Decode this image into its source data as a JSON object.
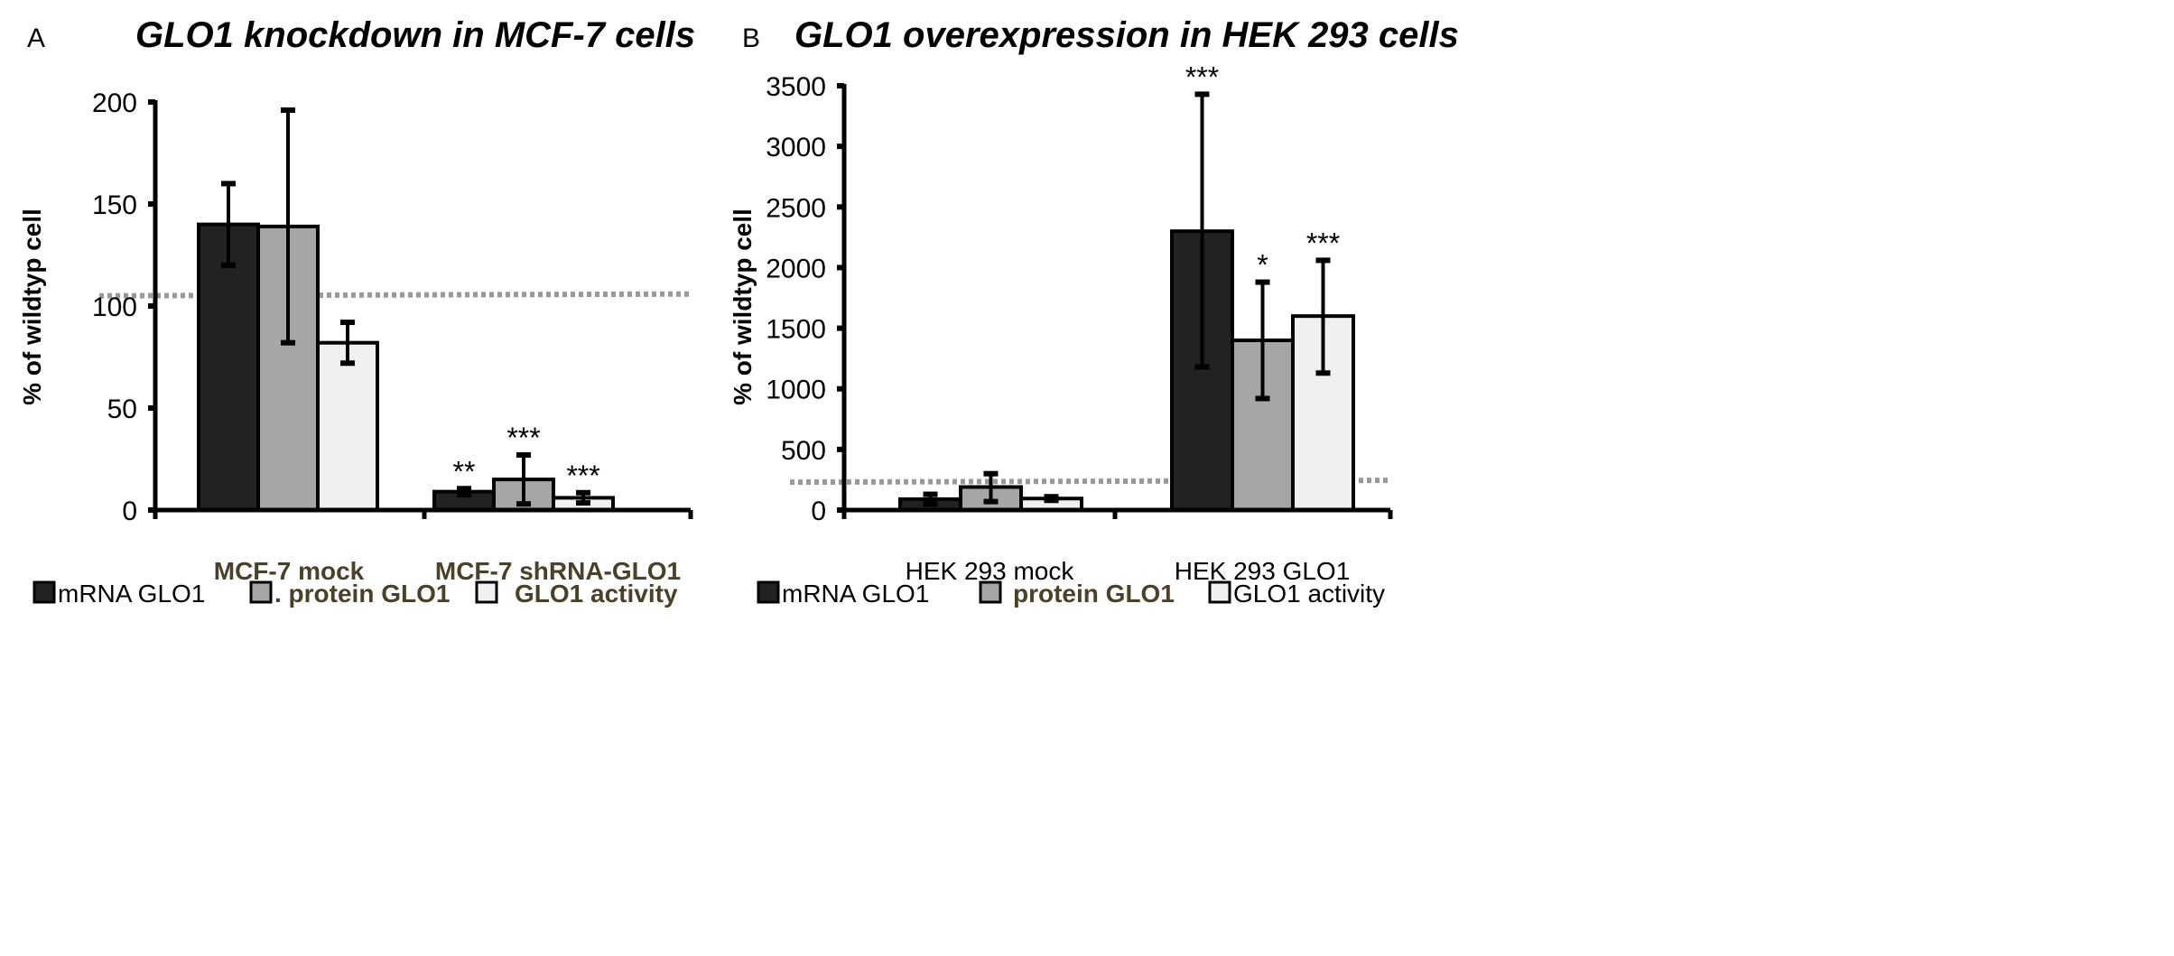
{
  "chart_data": [
    {
      "type": "bar",
      "panel_label": "A",
      "title": "GLO1 knockdown in MCF-7 cells",
      "ylabel": "% of wildtyp cell",
      "xlabel": "",
      "ylim": [
        0,
        200
      ],
      "yticks": [
        "0",
        "50",
        "100",
        "150",
        "200"
      ],
      "categories": [
        "MCF-7 mock",
        "MCF-7 shRNA-GLO1"
      ],
      "reference_line": 105,
      "series": [
        {
          "name": "mRNA GLO1",
          "color": "#222222",
          "values": [
            140,
            9
          ],
          "error_low": [
            120,
            7.5
          ],
          "error_high": [
            160,
            10.5
          ],
          "significance": [
            "",
            "**"
          ]
        },
        {
          "name": "protein GLO1",
          "color": "#a6a6a6",
          "values": [
            139,
            15
          ],
          "error_low": [
            82,
            3
          ],
          "error_high": [
            196,
            27
          ],
          "significance": [
            "",
            "***"
          ]
        },
        {
          "name": "GLO1 activity",
          "color": "#f0f0f0",
          "values": [
            82,
            6
          ],
          "error_low": [
            72,
            3.5
          ],
          "error_high": [
            92,
            8.5
          ],
          "significance": [
            "",
            "***"
          ]
        }
      ],
      "legend": [
        "mRNA GLO1",
        ". protein GLO1",
        "GLO1 activity"
      ],
      "legend_position": "bottom"
    },
    {
      "type": "bar",
      "panel_label": "B",
      "title": "GLO1 overexpression in HEK 293 cells",
      "ylabel": "% of wildtyp cell",
      "xlabel": "",
      "ylim": [
        0,
        3500
      ],
      "yticks": [
        "0",
        "500",
        "1000",
        "1500",
        "2000",
        "2500",
        "3000",
        "3500"
      ],
      "categories": [
        "HEK 293 mock",
        "HEK 293 GLO1"
      ],
      "reference_line": 230,
      "series": [
        {
          "name": "mRNA GLO1",
          "color": "#222222",
          "values": [
            90,
            2300
          ],
          "error_low": [
            50,
            1180
          ],
          "error_high": [
            130,
            3430
          ],
          "significance": [
            "",
            "***"
          ]
        },
        {
          "name": "protein GLO1",
          "color": "#a6a6a6",
          "values": [
            190,
            1400
          ],
          "error_low": [
            70,
            920
          ],
          "error_high": [
            300,
            1880
          ],
          "significance": [
            "",
            "*"
          ]
        },
        {
          "name": "GLO1 activity",
          "color": "#f0f0f0",
          "values": [
            95,
            1600
          ],
          "error_low": [
            80,
            1130
          ],
          "error_high": [
            110,
            2060
          ],
          "significance": [
            "",
            "***"
          ]
        }
      ],
      "legend": [
        "mRNA GLO1",
        "protein GLO1",
        "GLO1 activity"
      ],
      "legend_position": "bottom"
    }
  ]
}
